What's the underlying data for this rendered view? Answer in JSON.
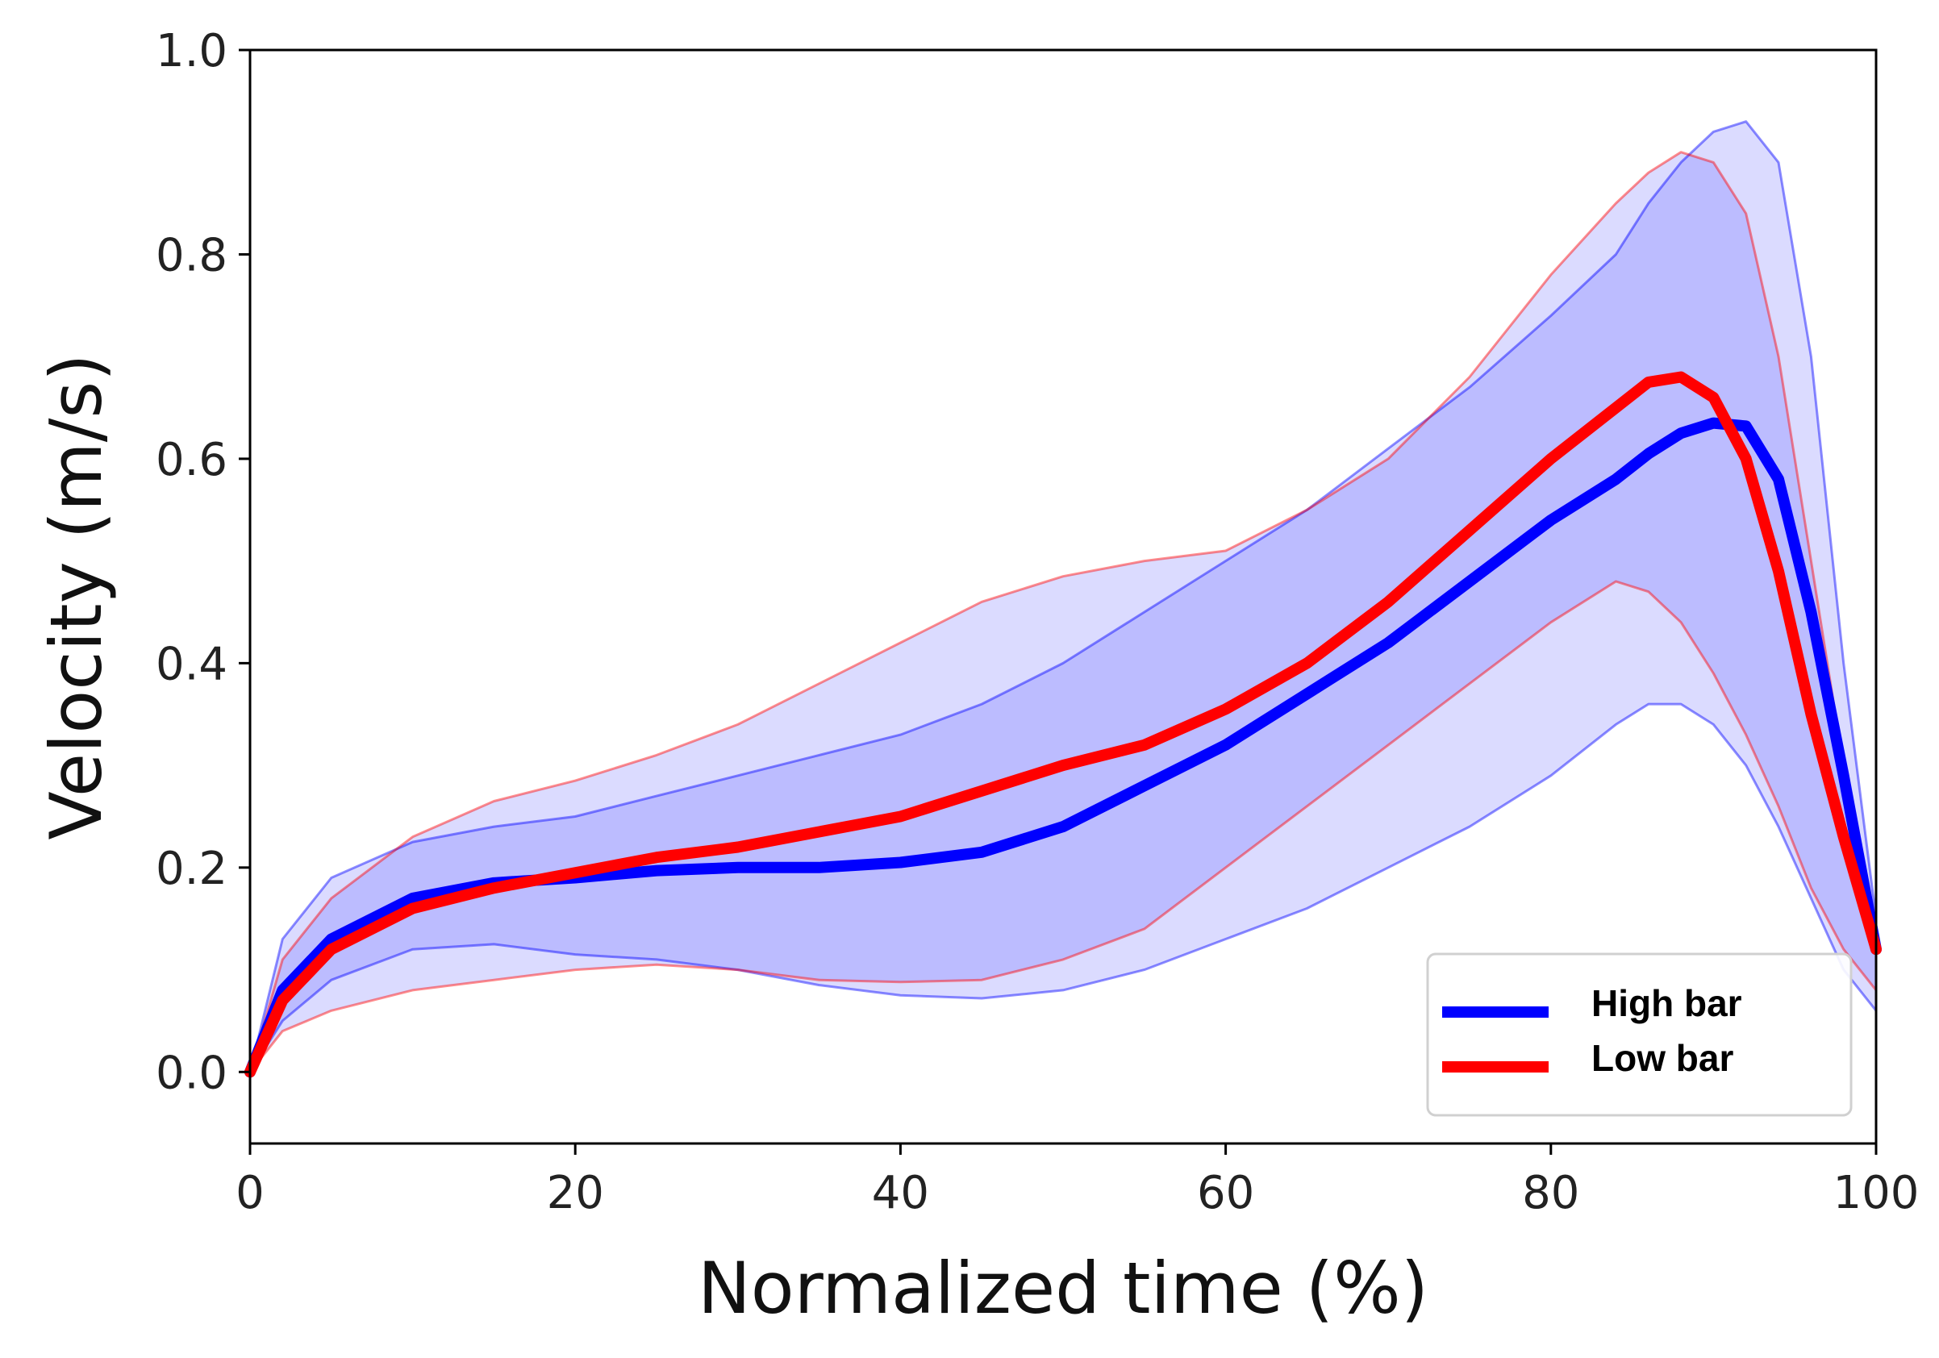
{
  "chart_data": {
    "type": "line",
    "title": "",
    "xlabel": "Normalized time (%)",
    "ylabel": "Velocity (m/s)",
    "xlim": [
      0,
      100
    ],
    "ylim": [
      -0.07,
      1.0
    ],
    "xticks": [
      0,
      20,
      40,
      60,
      80,
      100
    ],
    "yticks": [
      0.0,
      0.2,
      0.4,
      0.6,
      0.8,
      1.0
    ],
    "xtick_labels": [
      "0",
      "20",
      "40",
      "60",
      "80",
      "100"
    ],
    "ytick_labels": [
      "0.0",
      "0.2",
      "0.4",
      "0.6",
      "0.8",
      "1.0"
    ],
    "grid": false,
    "legend_position": "lower-right",
    "x": [
      0,
      2,
      5,
      10,
      15,
      20,
      25,
      30,
      35,
      40,
      45,
      50,
      55,
      60,
      65,
      70,
      75,
      80,
      84,
      86,
      88,
      90,
      92,
      94,
      96,
      98,
      100
    ],
    "series": [
      {
        "name": "High bar",
        "color": "#0000ff",
        "values": [
          0.0,
          0.08,
          0.13,
          0.17,
          0.185,
          0.19,
          0.197,
          0.2,
          0.2,
          0.205,
          0.215,
          0.24,
          0.28,
          0.32,
          0.37,
          0.42,
          0.48,
          0.54,
          0.58,
          0.605,
          0.625,
          0.635,
          0.632,
          0.58,
          0.45,
          0.29,
          0.12
        ],
        "band_upper": [
          0.0,
          0.13,
          0.19,
          0.225,
          0.24,
          0.25,
          0.27,
          0.29,
          0.31,
          0.33,
          0.36,
          0.4,
          0.45,
          0.5,
          0.55,
          0.61,
          0.67,
          0.74,
          0.8,
          0.85,
          0.89,
          0.92,
          0.93,
          0.89,
          0.7,
          0.4,
          0.15
        ],
        "band_lower": [
          0.0,
          0.05,
          0.09,
          0.12,
          0.125,
          0.115,
          0.11,
          0.1,
          0.085,
          0.075,
          0.072,
          0.08,
          0.1,
          0.13,
          0.16,
          0.2,
          0.24,
          0.29,
          0.34,
          0.36,
          0.36,
          0.34,
          0.3,
          0.24,
          0.17,
          0.1,
          0.06
        ]
      },
      {
        "name": "Low bar",
        "color": "#ff0000",
        "values": [
          0.0,
          0.07,
          0.12,
          0.16,
          0.18,
          0.195,
          0.21,
          0.22,
          0.235,
          0.25,
          0.275,
          0.3,
          0.32,
          0.355,
          0.4,
          0.46,
          0.53,
          0.6,
          0.65,
          0.675,
          0.68,
          0.66,
          0.6,
          0.49,
          0.35,
          0.23,
          0.12
        ],
        "band_upper": [
          0.0,
          0.11,
          0.17,
          0.23,
          0.265,
          0.285,
          0.31,
          0.34,
          0.38,
          0.42,
          0.46,
          0.485,
          0.5,
          0.51,
          0.55,
          0.6,
          0.68,
          0.78,
          0.85,
          0.88,
          0.9,
          0.89,
          0.84,
          0.7,
          0.5,
          0.3,
          0.12
        ],
        "band_lower": [
          0.0,
          0.04,
          0.06,
          0.08,
          0.09,
          0.1,
          0.105,
          0.1,
          0.09,
          0.088,
          0.09,
          0.11,
          0.14,
          0.2,
          0.26,
          0.32,
          0.38,
          0.44,
          0.48,
          0.47,
          0.44,
          0.39,
          0.33,
          0.26,
          0.18,
          0.12,
          0.08
        ]
      }
    ]
  }
}
